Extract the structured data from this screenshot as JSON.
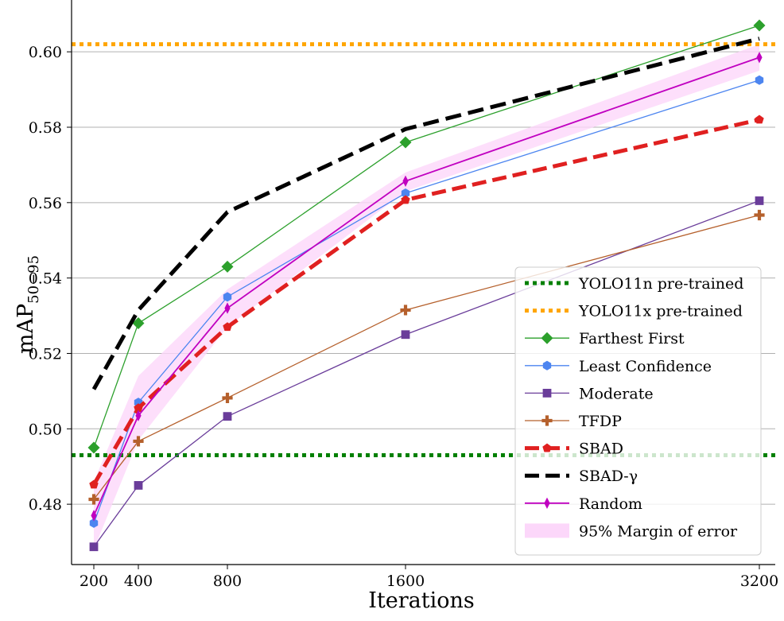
{
  "chart_data": {
    "type": "line",
    "title": "",
    "xlabel": "Iterations",
    "ylabel_main": "mAP",
    "ylabel_sub": "50−95",
    "x": [
      200,
      400,
      800,
      1600,
      3200
    ],
    "x_tick_labels": [
      "200",
      "400",
      "800",
      "1600",
      "3200"
    ],
    "y_ticks": [
      0.48,
      0.5,
      0.52,
      0.54,
      0.56,
      0.58,
      0.6
    ],
    "y_tick_labels": [
      "0.48",
      "0.50",
      "0.52",
      "0.54",
      "0.56",
      "0.58",
      "0.60"
    ],
    "ylim": [
      0.464,
      0.611
    ],
    "grid": "horizontal",
    "legend_position": "lower-right",
    "reference_lines": [
      {
        "name": "YOLO11n pre-trained",
        "value": 0.493,
        "color": "#008000"
      },
      {
        "name": "YOLO11x pre-trained",
        "value": 0.602,
        "color": "#FFA500"
      }
    ],
    "band": {
      "name": "95% Margin of error",
      "color": "#FCD7FA",
      "lower": [
        0.468,
        0.497,
        0.527,
        0.563,
        0.595
      ],
      "upper": [
        0.486,
        0.514,
        0.537,
        0.568,
        0.602
      ]
    },
    "series": [
      {
        "name": "Farthest First",
        "values": [
          0.495,
          0.528,
          0.543,
          0.576,
          0.607
        ],
        "color": "#2CA02C",
        "marker": "diamond",
        "style": "solid",
        "width": 1.3
      },
      {
        "name": "Least Confidence",
        "values": [
          0.475,
          0.507,
          0.535,
          0.5625,
          0.5925
        ],
        "color": "#4C85F0",
        "marker": "hexagon",
        "style": "solid",
        "width": 1.3
      },
      {
        "name": "Moderate",
        "values": [
          0.4687,
          0.485,
          0.5033,
          0.525,
          0.5605
        ],
        "color": "#6A3D9A",
        "marker": "square",
        "style": "solid",
        "width": 1.3
      },
      {
        "name": "TFDP",
        "values": [
          0.4813,
          0.4967,
          0.5082,
          0.5315,
          0.5567
        ],
        "color": "#B5602C",
        "marker": "plus",
        "style": "solid",
        "width": 1.3
      },
      {
        "name": "SBAD",
        "values": [
          0.4852,
          0.5055,
          0.527,
          0.5607,
          0.582
        ],
        "color": "#E02020",
        "marker": "pentagon",
        "style": "dashed",
        "width": 5
      },
      {
        "name": "SBAD-γ",
        "values": [
          0.5105,
          0.5315,
          0.5575,
          0.5795,
          0.6035
        ],
        "color": "#000000",
        "marker": "none",
        "style": "dashed",
        "width": 5
      },
      {
        "name": "Random",
        "values": [
          0.477,
          0.5035,
          0.532,
          0.5657,
          0.5985
        ],
        "color": "#C000C0",
        "marker": "thin-diamond",
        "style": "solid",
        "width": 1.8
      }
    ],
    "legend_order": [
      "YOLO11n pre-trained",
      "YOLO11x pre-trained",
      "Farthest First",
      "Least Confidence",
      "Moderate",
      "TFDP",
      "SBAD",
      "SBAD-γ",
      "Random",
      "95% Margin of error"
    ]
  }
}
